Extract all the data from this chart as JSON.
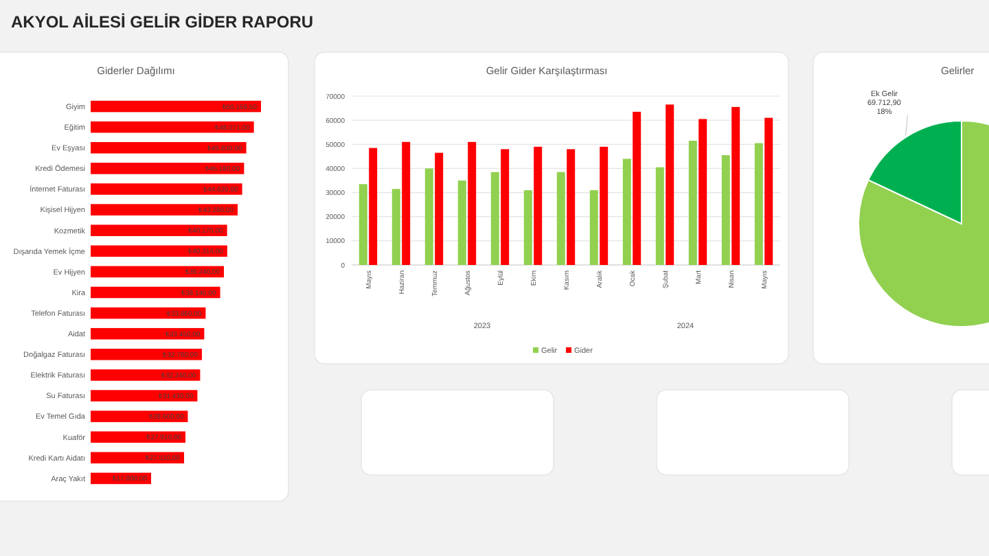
{
  "chart_data": [
    {
      "type": "bar",
      "orientation": "horizontal",
      "title": "Giderler Dağılımı",
      "annotations": [
        "AKYOL AİLESİ GELİR GİDER RAPORU"
      ],
      "categories": [
        "Giyim",
        "Eğitim",
        "Ev Eşyası",
        "Kredi Ödemesi",
        "İnternet Faturası",
        "Kişisel Hijyen",
        "Kozmetik",
        "Dışarıda Yemek İçme",
        "Ev Hijyen",
        "Kira",
        "Telefon Faturası",
        "Aidat",
        "Doğalgaz Faturası",
        "Elektrik Faturası",
        "Su Faturası",
        "Ev Temel Gıda",
        "Kuaför",
        "Kredi Kartı Aidatı",
        "Araç Yakıt"
      ],
      "values": [
        50159.5,
        48071,
        45830,
        45180,
        44620,
        43280,
        40170,
        40214,
        39240,
        38140,
        33860,
        33450,
        32760,
        32240,
        31430,
        28600,
        27910,
        27510,
        17800
      ],
      "value_labels": [
        "₺50.159,50",
        "₺48.071,00",
        "₺45.830,00",
        "₺45.180,00",
        "₺44.620,00",
        "₺43.280,00",
        "₺40.170,00",
        "₺40.214,00",
        "₺39.240,00",
        "₺38.140,00",
        "₺33.860,00",
        "₺33.450,00",
        "₺32.760,00",
        "₺32.240,00",
        "₺31.430,00",
        "₺28.600,00",
        "₺27.910,00",
        "₺27.510,00",
        "₺17.800,00"
      ],
      "color": "#ff0000",
      "tick_labels": "y"
    },
    {
      "type": "bar",
      "title": "Gelir Gider Karşılaştırması",
      "categories": [
        "Mayıs",
        "Haziran",
        "Temmuz",
        "Ağustos",
        "Eylül",
        "Ekim",
        "Kasım",
        "Aralık",
        "Ocak",
        "Şubat",
        "Mart",
        "Nisan",
        "Mayıs"
      ],
      "series": [
        {
          "name": "Gelir",
          "color": "#92d050",
          "values": [
            33500,
            31500,
            40000,
            35000,
            38500,
            31000,
            38500,
            31000,
            44000,
            40500,
            51500,
            45500,
            50500
          ]
        },
        {
          "name": "Gider",
          "color": "#ff0000",
          "values": [
            48500,
            51000,
            46500,
            51000,
            48000,
            49000,
            48000,
            49000,
            63500,
            66500,
            60500,
            65500,
            61000
          ]
        }
      ],
      "ylim": [
        0,
        70000
      ],
      "yticks": [
        0,
        10000,
        20000,
        30000,
        40000,
        50000,
        60000,
        70000
      ],
      "grid": "y",
      "legend": "bottom",
      "annotations": [
        "2023",
        "2024"
      ]
    },
    {
      "type": "pie",
      "title": "Gelirler",
      "categories": [
        null,
        "Ek Gelir"
      ],
      "values": [
        82,
        18
      ],
      "colors": [
        "#92d050",
        "#00b050"
      ],
      "value_labels": [
        null,
        "69.712,90\n18%"
      ]
    }
  ]
}
